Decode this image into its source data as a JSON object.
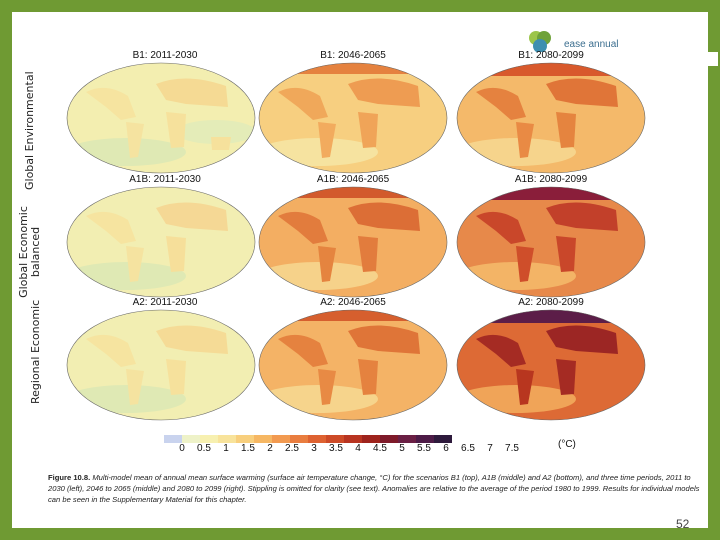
{
  "slide": {
    "logo_text": "ease annual",
    "row_labels": [
      "Global Environmental",
      "Global Economic balanced",
      "Regional Economic"
    ],
    "panels": [
      {
        "title": "B1: 2011-2030"
      },
      {
        "title": "B1: 2046-2065"
      },
      {
        "title": "B1: 2080-2099"
      },
      {
        "title": "A1B: 2011-2030"
      },
      {
        "title": "A1B: 2046-2065"
      },
      {
        "title": "A1B: 2080-2099"
      },
      {
        "title": "A2: 2011-2030"
      },
      {
        "title": "A2: 2046-2065"
      },
      {
        "title": "A2: 2080-2099"
      }
    ],
    "scale_ticks": [
      "0",
      "0.5",
      "1",
      "1.5",
      "2",
      "2.5",
      "3",
      "3.5",
      "4",
      "4.5",
      "5",
      "5.5",
      "6",
      "6.5",
      "7",
      "7.5"
    ],
    "scale_unit": "(°C)",
    "caption_label": "Figure 10.8.",
    "caption_text": "Multi-model mean of annual mean surface warming (surface air temperature change, °C) for the scenarios B1 (top), A1B (middle) and A2 (bottom), and three time periods, 2011 to 2030 (left), 2046 to 2065 (middle) and 2080 to 2099 (right). Stippling is omitted for clarity (see text). Anomalies are relative to the average of the period 1980 to 1999. Results for individual models can be seen in the Supplementary Material for this chapter.",
    "page_number": "52"
  },
  "colors": {
    "background": "#6f9a33",
    "scale": [
      "#c9d3ee",
      "#eef2c8",
      "#f7f0b0",
      "#f8e39b",
      "#f8cf7d",
      "#f6b763",
      "#f29a50",
      "#e97d3f",
      "#de6231",
      "#cd4a27",
      "#b83421",
      "#9e231d",
      "#7e1a2a",
      "#6a1f44",
      "#4d1b47",
      "#2e1a3c"
    ]
  }
}
